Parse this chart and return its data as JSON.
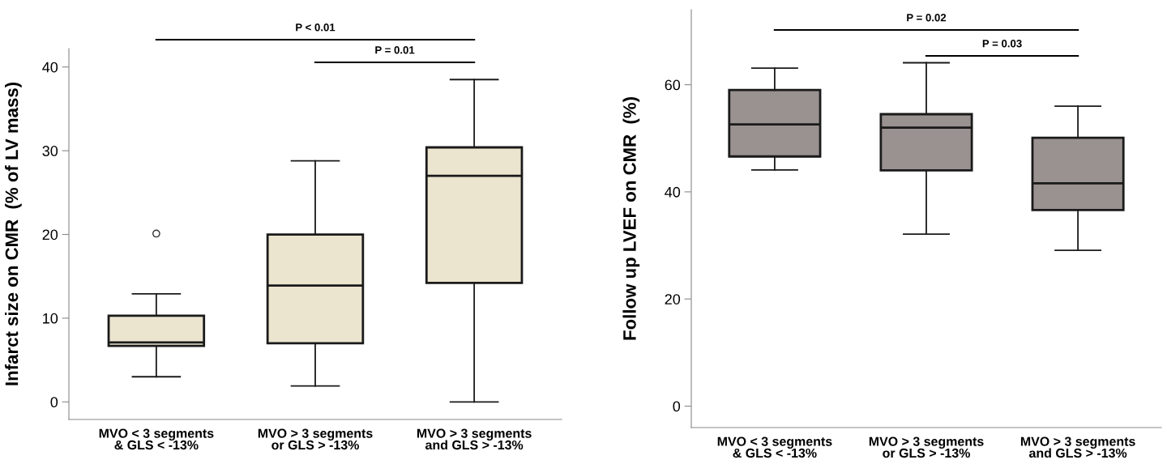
{
  "chart_data": [
    {
      "type": "box",
      "ylabel": "Infarct size on CMR  (% of LV mass)",
      "categories": [
        "MVO < 3 segments\n& GLS < -13%",
        "MVO > 3 segments\nor GLS > -13%",
        "MVO > 3 segments\nand GLS > -13%"
      ],
      "ylim": [
        -2.1,
        42.2
      ],
      "yticks": [
        0,
        10,
        20,
        30,
        40
      ],
      "grid": false,
      "annotations": [
        "P < 0.01",
        "P = 0.01"
      ],
      "series": [
        {
          "color": "#ebe4cf",
          "boxes": [
            {
              "low": 3.0,
              "q1": 6.7,
              "median": 7.1,
              "q3": 10.3,
              "high": 12.9,
              "outliers": [
                20.1
              ]
            },
            {
              "low": 1.9,
              "q1": 7.0,
              "median": 13.9,
              "q3": 20.0,
              "high": 28.8
            },
            {
              "low": 0,
              "q1": 14.2,
              "median": 27.0,
              "q3": 30.4,
              "high": 38.5
            }
          ]
        }
      ]
    },
    {
      "type": "box",
      "ylabel": "Follow up LVEF on CMR  (%)",
      "categories": [
        "MVO < 3 segments\n& GLS < -13%",
        "MVO > 3 segments\nor GLS > -13%",
        "MVO > 3 segments\nand GLS > -13%"
      ],
      "ylim": [
        -4,
        74
      ],
      "yticks": [
        0,
        20,
        40,
        60
      ],
      "grid": false,
      "annotations": [
        "P = 0.02",
        "P = 0.03"
      ],
      "series": [
        {
          "color": "#9a9191",
          "boxes": [
            {
              "low": 44.1,
              "q1": 46.6,
              "median": 52.6,
              "q3": 59.0,
              "high": 63.1
            },
            {
              "low": 32.1,
              "q1": 44.0,
              "median": 52.0,
              "q3": 54.5,
              "high": 64.1
            },
            {
              "low": 29.1,
              "q1": 36.6,
              "median": 41.6,
              "q3": 50.1,
              "high": 56.0
            }
          ]
        }
      ]
    }
  ]
}
